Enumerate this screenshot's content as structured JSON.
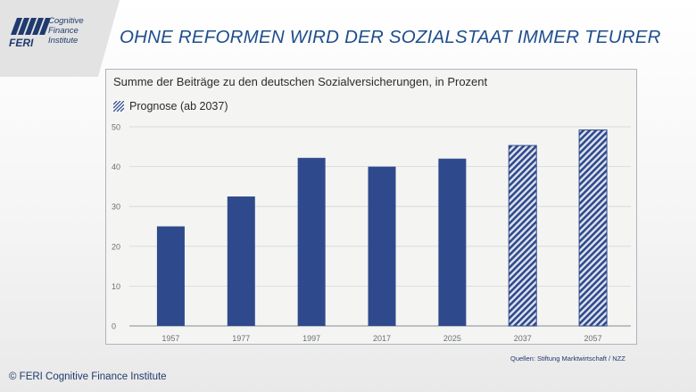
{
  "logo": {
    "brand": "FERI",
    "sub_line1": "Cognitive",
    "sub_line2": "Finance",
    "sub_line3": "Institute"
  },
  "slide_title": "OHNE REFORMEN WIRD DER SOZIALSTAAT IMMER TEURER",
  "footer": {
    "source": "Quellen: Stiftung Marktwirtschaft  / NZZ",
    "copyright": "© FERI Cognitive Finance Institute"
  },
  "colors": {
    "bar": "#2f4a8c",
    "title": "#1f4e8c"
  },
  "chart_data": {
    "type": "bar",
    "title": "Summe der Beiträge zu den deutschen Sozialversicherungen, in Prozent",
    "legend": "Prognose (ab 2037)",
    "categories": [
      "1957",
      "1977",
      "1997",
      "2017",
      "2025",
      "2037",
      "2057"
    ],
    "values": [
      25,
      32.5,
      42.2,
      40,
      42,
      45.3,
      49.2
    ],
    "forecast": [
      false,
      false,
      false,
      false,
      false,
      true,
      true
    ],
    "ylim": [
      0,
      50
    ],
    "yticks": [
      0,
      10,
      20,
      30,
      40,
      50
    ],
    "grid": true
  }
}
